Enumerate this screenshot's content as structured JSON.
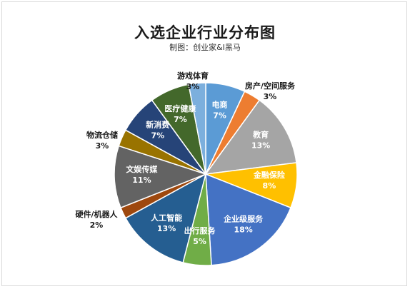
{
  "chart_data": {
    "type": "pie",
    "title": "入选企业行业分布图",
    "subtitle": "制图：创业家&I黑马",
    "start_angle_deg": -90,
    "direction": "clockwise",
    "slices": [
      {
        "name": "电商",
        "value": 7,
        "label": "7%",
        "color": "#5b9bd5",
        "label_pos": "inside",
        "label_color": "#ffffff"
      },
      {
        "name": "房产/空间服务",
        "value": 3,
        "label": "3%",
        "color": "#ed7d31",
        "label_pos": "outside",
        "label_color": "#1a1a1a"
      },
      {
        "name": "教育",
        "value": 13,
        "label": "13%",
        "color": "#a5a5a5",
        "label_pos": "inside",
        "label_color": "#ffffff"
      },
      {
        "name": "金融保险",
        "value": 8,
        "label": "8%",
        "color": "#ffc000",
        "label_pos": "inside",
        "label_color": "#ffffff"
      },
      {
        "name": "企业级服务",
        "value": 18,
        "label": "18%",
        "color": "#4472c4",
        "label_pos": "inside",
        "label_color": "#ffffff"
      },
      {
        "name": "出行服务",
        "value": 5,
        "label": "5%",
        "color": "#70ad47",
        "label_pos": "inside",
        "label_color": "#ffffff"
      },
      {
        "name": "人工智能",
        "value": 13,
        "label": "13%",
        "color": "#255e91",
        "label_pos": "inside",
        "label_color": "#ffffff"
      },
      {
        "name": "硬件/机器人",
        "value": 2,
        "label": "2%",
        "color": "#9e480e",
        "label_pos": "outside",
        "label_color": "#1a1a1a"
      },
      {
        "name": "文娱传媒",
        "value": 11,
        "label": "11%",
        "color": "#636363",
        "label_pos": "inside",
        "label_color": "#ffffff"
      },
      {
        "name": "物流仓储",
        "value": 3,
        "label": "3%",
        "color": "#997300",
        "label_pos": "outside",
        "label_color": "#1a1a1a"
      },
      {
        "name": "新消费",
        "value": 7,
        "label": "7%",
        "color": "#264478",
        "label_pos": "inside",
        "label_color": "#ffffff"
      },
      {
        "name": "医疗健康",
        "value": 7,
        "label": "7%",
        "color": "#43682b",
        "label_pos": "inside",
        "label_color": "#ffffff"
      },
      {
        "name": "游戏体育",
        "value": 3,
        "label": "3%",
        "color": "#7cafdd",
        "label_pos": "outside",
        "label_color": "#1a1a1a"
      }
    ]
  }
}
